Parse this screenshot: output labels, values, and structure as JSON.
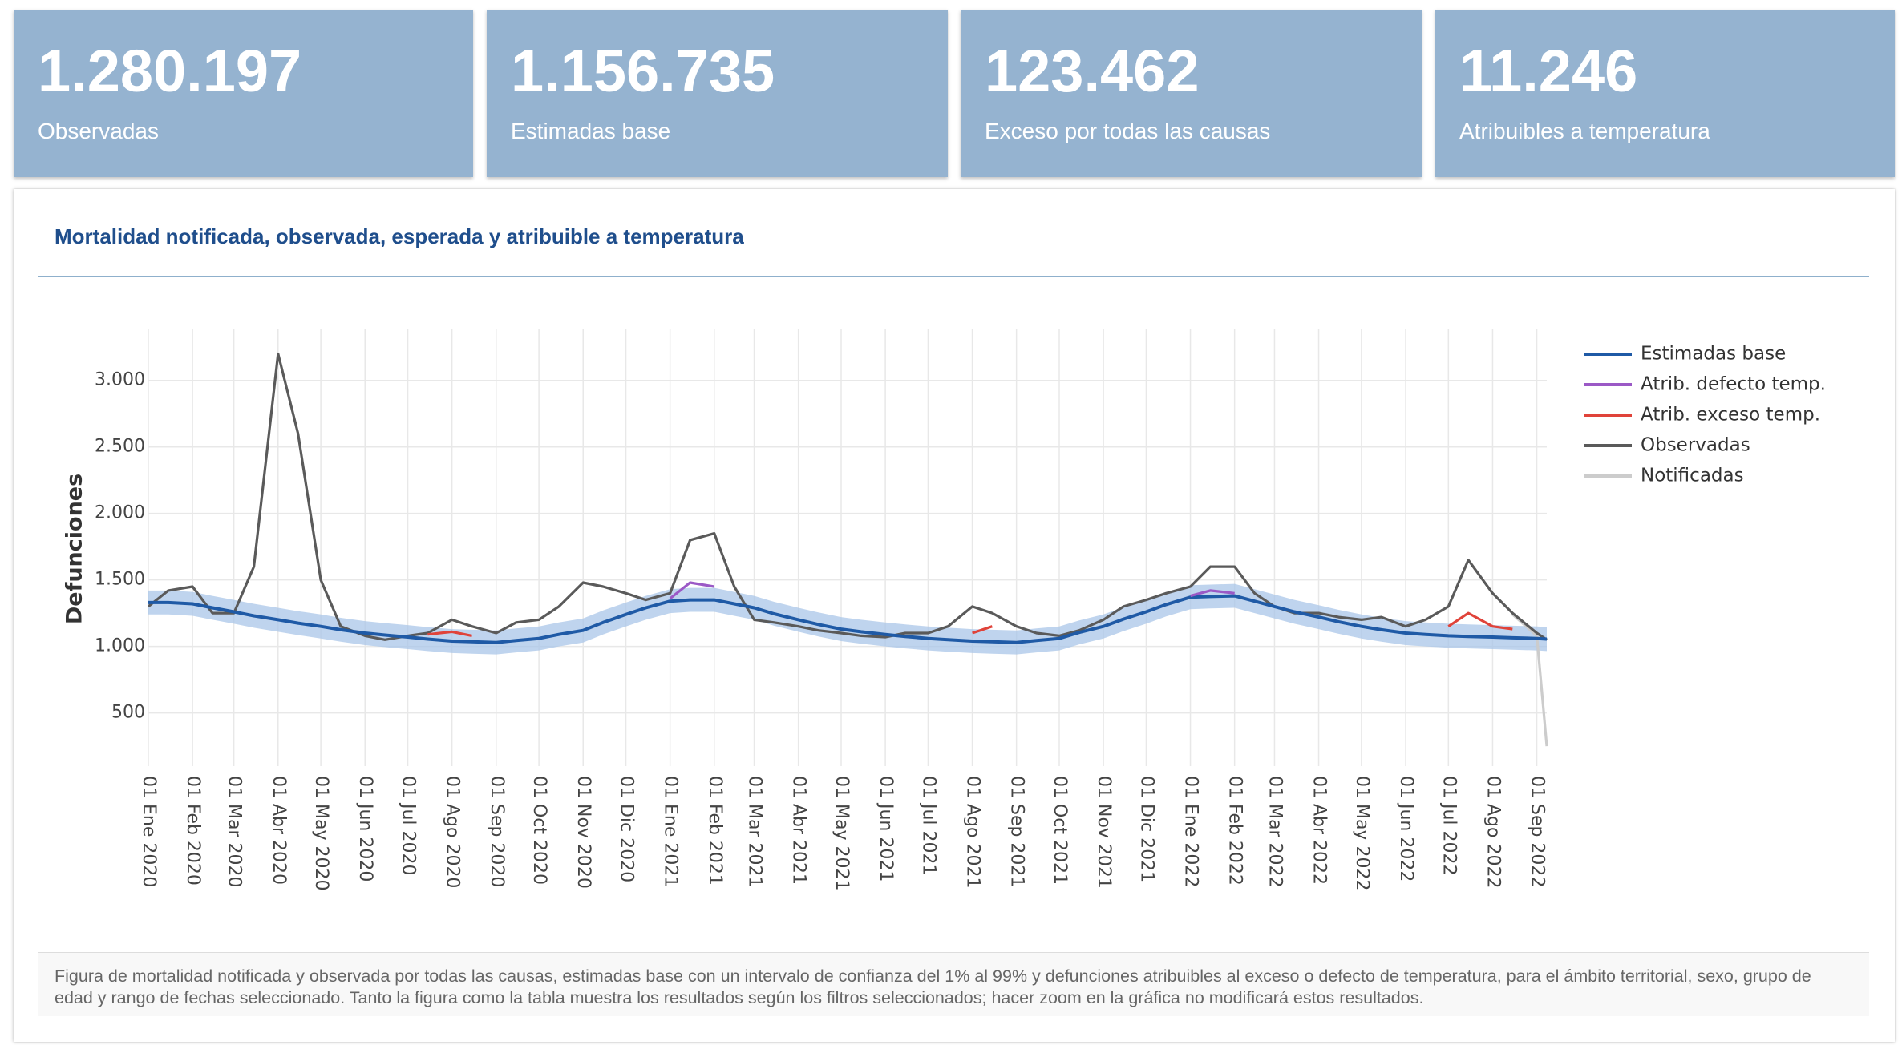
{
  "kpis": [
    {
      "value": "1.280.197",
      "label": "Observadas"
    },
    {
      "value": "1.156.735",
      "label": "Estimadas base"
    },
    {
      "value": "123.462",
      "label": "Exceso por todas las causas"
    },
    {
      "value": "11.246",
      "label": "Atribuibles a temperatura"
    }
  ],
  "chart_data": {
    "type": "line",
    "title": "Mortalidad notificada, observada, esperada y atribuible a temperatura",
    "y_label": "Defunciones",
    "x": [
      "2020-01-01",
      "2020-01-15",
      "2020-02-01",
      "2020-02-15",
      "2020-03-01",
      "2020-03-15",
      "2020-04-01",
      "2020-04-15",
      "2020-05-01",
      "2020-05-15",
      "2020-06-01",
      "2020-06-15",
      "2020-07-01",
      "2020-07-15",
      "2020-08-01",
      "2020-08-15",
      "2020-09-01",
      "2020-09-15",
      "2020-10-01",
      "2020-10-15",
      "2020-11-01",
      "2020-11-15",
      "2020-12-01",
      "2020-12-15",
      "2021-01-01",
      "2021-01-15",
      "2021-02-01",
      "2021-02-15",
      "2021-03-01",
      "2021-03-15",
      "2021-04-01",
      "2021-04-15",
      "2021-05-01",
      "2021-05-15",
      "2021-06-01",
      "2021-06-15",
      "2021-07-01",
      "2021-07-15",
      "2021-08-01",
      "2021-08-15",
      "2021-09-01",
      "2021-09-15",
      "2021-10-01",
      "2021-10-15",
      "2021-11-01",
      "2021-11-15",
      "2021-12-01",
      "2021-12-15",
      "2022-01-01",
      "2022-01-15",
      "2022-02-01",
      "2022-02-15",
      "2022-03-01",
      "2022-03-15",
      "2022-04-01",
      "2022-04-15",
      "2022-05-01",
      "2022-05-15",
      "2022-06-01",
      "2022-06-15",
      "2022-07-01",
      "2022-07-15",
      "2022-08-01",
      "2022-08-15",
      "2022-09-01",
      "2022-09-08"
    ],
    "xlim": [
      "2020-01-01",
      "2022-09-08"
    ],
    "xticks": [
      {
        "value": "2020-01-01",
        "label": "01 Ene 2020"
      },
      {
        "value": "2020-02-01",
        "label": "01 Feb 2020"
      },
      {
        "value": "2020-03-01",
        "label": "01 Mar 2020"
      },
      {
        "value": "2020-04-01",
        "label": "01 Abr 2020"
      },
      {
        "value": "2020-05-01",
        "label": "01 May 2020"
      },
      {
        "value": "2020-06-01",
        "label": "01 Jun 2020"
      },
      {
        "value": "2020-07-01",
        "label": "01 Jul 2020"
      },
      {
        "value": "2020-08-01",
        "label": "01 Ago 2020"
      },
      {
        "value": "2020-09-01",
        "label": "01 Sep 2020"
      },
      {
        "value": "2020-10-01",
        "label": "01 Oct 2020"
      },
      {
        "value": "2020-11-01",
        "label": "01 Nov 2020"
      },
      {
        "value": "2020-12-01",
        "label": "01 Dic 2020"
      },
      {
        "value": "2021-01-01",
        "label": "01 Ene 2021"
      },
      {
        "value": "2021-02-01",
        "label": "01 Feb 2021"
      },
      {
        "value": "2021-03-01",
        "label": "01 Mar 2021"
      },
      {
        "value": "2021-04-01",
        "label": "01 Abr 2021"
      },
      {
        "value": "2021-05-01",
        "label": "01 May 2021"
      },
      {
        "value": "2021-06-01",
        "label": "01 Jun 2021"
      },
      {
        "value": "2021-07-01",
        "label": "01 Jul 2021"
      },
      {
        "value": "2021-08-01",
        "label": "01 Ago 2021"
      },
      {
        "value": "2021-09-01",
        "label": "01 Sep 2021"
      },
      {
        "value": "2021-10-01",
        "label": "01 Oct 2021"
      },
      {
        "value": "2021-11-01",
        "label": "01 Nov 2021"
      },
      {
        "value": "2021-12-01",
        "label": "01 Dic 2021"
      },
      {
        "value": "2022-01-01",
        "label": "01 Ene 2022"
      },
      {
        "value": "2022-02-01",
        "label": "01 Feb 2022"
      },
      {
        "value": "2022-03-01",
        "label": "01 Mar 2022"
      },
      {
        "value": "2022-04-01",
        "label": "01 Abr 2022"
      },
      {
        "value": "2022-05-01",
        "label": "01 May 2022"
      },
      {
        "value": "2022-06-01",
        "label": "01 Jun 2022"
      },
      {
        "value": "2022-07-01",
        "label": "01 Jul 2022"
      },
      {
        "value": "2022-08-01",
        "label": "01 Ago 2022"
      },
      {
        "value": "2022-09-01",
        "label": "01 Sep 2022"
      }
    ],
    "ylim": [
      100,
      3390
    ],
    "yticks": [
      500,
      {
        "value": 1000,
        "label": "1.000"
      },
      {
        "value": 1500,
        "label": "1.500"
      },
      {
        "value": 2000,
        "label": "2.000"
      },
      {
        "value": 2500,
        "label": "2.500"
      },
      {
        "value": 3000,
        "label": "3.000"
      }
    ],
    "grid": true,
    "legend": "right",
    "band": {
      "color": "#a9c6e8",
      "lower": [
        1240,
        1240,
        1230,
        1200,
        1170,
        1140,
        1110,
        1085,
        1060,
        1035,
        1010,
        995,
        980,
        965,
        950,
        945,
        940,
        955,
        970,
        1000,
        1030,
        1090,
        1150,
        1200,
        1250,
        1260,
        1260,
        1230,
        1200,
        1155,
        1110,
        1075,
        1040,
        1020,
        1000,
        985,
        970,
        960,
        950,
        945,
        940,
        955,
        970,
        1015,
        1060,
        1115,
        1170,
        1225,
        1280,
        1285,
        1290,
        1250,
        1210,
        1170,
        1130,
        1095,
        1060,
        1035,
        1010,
        1000,
        990,
        985,
        980,
        975,
        970,
        965
      ],
      "upper": [
        1420,
        1420,
        1410,
        1380,
        1350,
        1320,
        1290,
        1265,
        1240,
        1215,
        1190,
        1175,
        1160,
        1145,
        1130,
        1125,
        1120,
        1135,
        1150,
        1180,
        1210,
        1270,
        1330,
        1380,
        1430,
        1440,
        1440,
        1410,
        1380,
        1335,
        1290,
        1255,
        1220,
        1200,
        1180,
        1165,
        1150,
        1140,
        1130,
        1125,
        1120,
        1135,
        1150,
        1195,
        1240,
        1295,
        1350,
        1405,
        1460,
        1465,
        1470,
        1430,
        1390,
        1350,
        1310,
        1275,
        1240,
        1215,
        1190,
        1180,
        1170,
        1165,
        1160,
        1155,
        1150,
        1145
      ]
    },
    "series": [
      {
        "name": "Estimadas base",
        "color": "#1f5aa6",
        "values": [
          1330,
          1330,
          1320,
          1290,
          1260,
          1230,
          1200,
          1175,
          1150,
          1125,
          1100,
          1085,
          1070,
          1055,
          1040,
          1035,
          1030,
          1045,
          1060,
          1090,
          1120,
          1180,
          1240,
          1290,
          1340,
          1350,
          1350,
          1320,
          1290,
          1245,
          1200,
          1165,
          1130,
          1110,
          1090,
          1075,
          1060,
          1050,
          1040,
          1035,
          1030,
          1045,
          1060,
          1105,
          1150,
          1205,
          1260,
          1315,
          1370,
          1375,
          1380,
          1340,
          1300,
          1260,
          1220,
          1185,
          1150,
          1125,
          1100,
          1090,
          1080,
          1075,
          1070,
          1065,
          1060,
          1055
        ]
      },
      {
        "name": "Atrib. defecto temp.",
        "color": "#9b59c6",
        "values": [
          null,
          null,
          null,
          null,
          null,
          null,
          null,
          null,
          null,
          null,
          null,
          null,
          null,
          null,
          null,
          null,
          null,
          null,
          null,
          null,
          null,
          null,
          null,
          null,
          1360,
          1480,
          1450,
          null,
          null,
          null,
          null,
          null,
          null,
          null,
          null,
          null,
          null,
          null,
          null,
          null,
          null,
          null,
          null,
          null,
          null,
          null,
          null,
          null,
          1380,
          1420,
          1400,
          null,
          null,
          null,
          null,
          null,
          null,
          null,
          null,
          null,
          null,
          null,
          null,
          null,
          null,
          null
        ]
      },
      {
        "name": "Atrib. exceso temp.",
        "color": "#e0433a",
        "values": [
          null,
          null,
          null,
          null,
          null,
          null,
          null,
          null,
          null,
          null,
          null,
          null,
          null,
          1090,
          1110,
          1080,
          null,
          null,
          null,
          null,
          null,
          null,
          null,
          null,
          null,
          null,
          null,
          null,
          null,
          null,
          null,
          null,
          null,
          null,
          null,
          null,
          null,
          null,
          1100,
          1150,
          null,
          null,
          null,
          null,
          null,
          null,
          null,
          null,
          null,
          null,
          null,
          null,
          null,
          null,
          null,
          null,
          null,
          null,
          null,
          null,
          1150,
          1250,
          1150,
          1130,
          null,
          null
        ]
      },
      {
        "name": "Observadas",
        "color": "#5a5a5a",
        "values": [
          1300,
          1420,
          1450,
          1250,
          1250,
          1600,
          3200,
          2600,
          1500,
          1150,
          1080,
          1050,
          1080,
          1100,
          1200,
          1150,
          1100,
          1180,
          1200,
          1300,
          1480,
          1450,
          1400,
          1350,
          1400,
          1800,
          1850,
          1450,
          1200,
          1180,
          1150,
          1120,
          1100,
          1080,
          1070,
          1100,
          1100,
          1150,
          1300,
          1250,
          1150,
          1100,
          1080,
          1120,
          1200,
          1300,
          1350,
          1400,
          1450,
          1600,
          1600,
          1400,
          1300,
          1250,
          1250,
          1220,
          1200,
          1220,
          1150,
          1200,
          1300,
          1650,
          1400,
          1250,
          1100,
          1050
        ]
      },
      {
        "name": "Notificadas",
        "color": "#cccccc",
        "values": [
          null,
          null,
          null,
          null,
          null,
          null,
          null,
          null,
          null,
          null,
          null,
          null,
          null,
          null,
          null,
          null,
          null,
          null,
          null,
          null,
          null,
          null,
          null,
          null,
          null,
          null,
          null,
          null,
          null,
          null,
          null,
          null,
          null,
          null,
          null,
          null,
          null,
          null,
          null,
          null,
          null,
          null,
          null,
          null,
          null,
          null,
          null,
          null,
          null,
          null,
          null,
          null,
          null,
          null,
          null,
          null,
          null,
          null,
          null,
          null,
          null,
          null,
          null,
          1240,
          1080,
          250
        ]
      }
    ]
  },
  "footnote": "Figura de mortalidad notificada y observada por todas las causas, estimadas base con un intervalo de confianza del 1% al 99% y defunciones atribuibles al exceso o defecto de temperatura, para el ámbito territorial, sexo, grupo de edad y rango de fechas seleccionado. Tanto la figura como la tabla muestra los resultados según los filtros seleccionados; hacer zoom en la gráfica no modificará estos resultados."
}
